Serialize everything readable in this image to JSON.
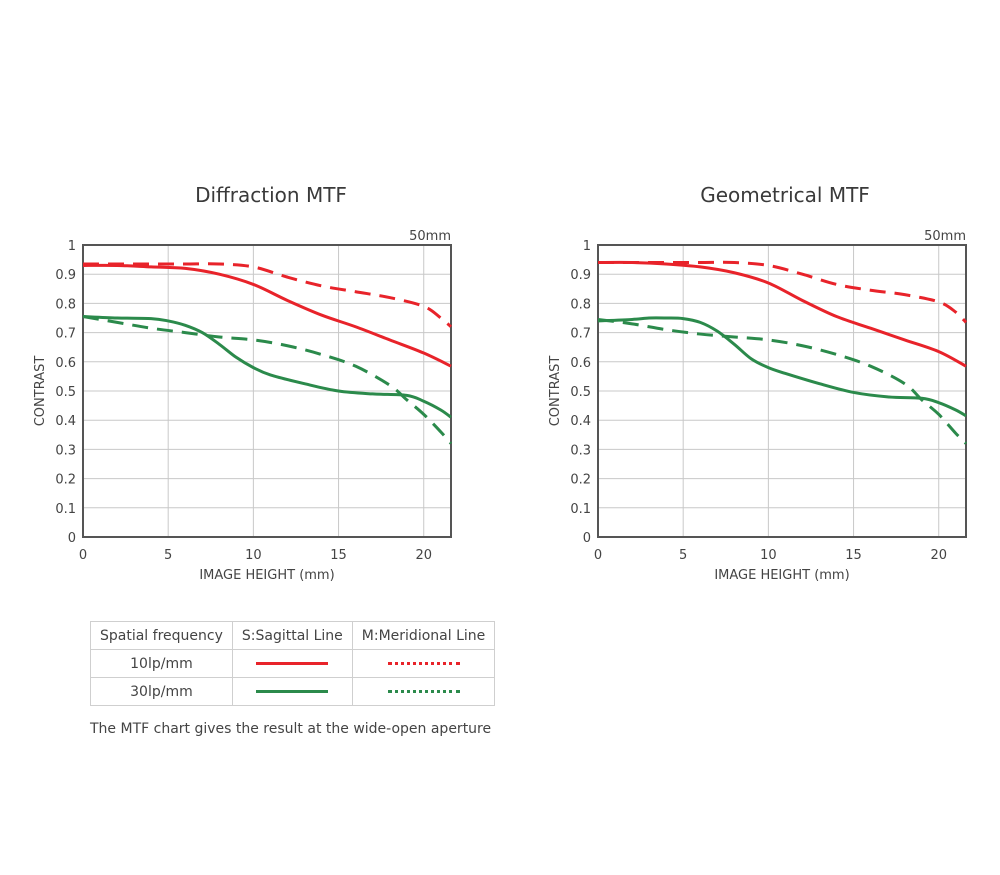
{
  "colors": {
    "red": "#e8232a",
    "green": "#2b8a4b",
    "grid": "#c8c8c8",
    "frame": "#555555"
  },
  "chart_data": [
    {
      "type": "line",
      "title": "Diffraction MTF",
      "corner_label": "50mm",
      "xlabel": "IMAGE HEIGHT (mm)",
      "ylabel": "CONTRAST",
      "xlim": [
        0,
        21.6
      ],
      "ylim": [
        0,
        1
      ],
      "xticks": [
        0,
        5,
        10,
        15,
        20
      ],
      "yticks": [
        0,
        0.1,
        0.2,
        0.3,
        0.4,
        0.5,
        0.6,
        0.7,
        0.8,
        0.9,
        1
      ],
      "xtick_labels": [
        "0",
        "5",
        "10",
        "15",
        "20"
      ],
      "ytick_labels": [
        "0",
        "0.1",
        "0.2",
        "0.3",
        "0.4",
        "0.5",
        "0.6",
        "0.7",
        "0.8",
        "0.9",
        "1"
      ],
      "grid": true,
      "series": [
        {
          "name": "10lp/mm S",
          "color": "#e8232a",
          "style": "solid",
          "x": [
            0,
            2,
            4,
            6,
            8,
            10,
            12,
            14,
            16,
            18,
            20,
            21.6
          ],
          "y": [
            0.93,
            0.93,
            0.925,
            0.92,
            0.9,
            0.865,
            0.81,
            0.76,
            0.72,
            0.675,
            0.63,
            0.585
          ]
        },
        {
          "name": "10lp/mm M",
          "color": "#e8232a",
          "style": "dashed",
          "x": [
            0,
            2,
            4,
            6,
            8,
            10,
            12,
            14,
            16,
            18,
            20,
            21,
            21.6
          ],
          "y": [
            0.935,
            0.935,
            0.935,
            0.935,
            0.935,
            0.925,
            0.89,
            0.86,
            0.84,
            0.82,
            0.79,
            0.75,
            0.72
          ]
        },
        {
          "name": "30lp/mm S",
          "color": "#2b8a4b",
          "style": "solid",
          "x": [
            0,
            2,
            4,
            5,
            6,
            7,
            8,
            9,
            10,
            11,
            13,
            15,
            17,
            19,
            20,
            21,
            21.6
          ],
          "y": [
            0.755,
            0.75,
            0.748,
            0.74,
            0.725,
            0.7,
            0.66,
            0.615,
            0.58,
            0.555,
            0.525,
            0.5,
            0.49,
            0.485,
            0.465,
            0.435,
            0.41
          ]
        },
        {
          "name": "30lp/mm M",
          "color": "#2b8a4b",
          "style": "dashed",
          "x": [
            0,
            2,
            4,
            6,
            8,
            10,
            12,
            14,
            16,
            18,
            19,
            20,
            21,
            21.6
          ],
          "y": [
            0.755,
            0.735,
            0.715,
            0.7,
            0.685,
            0.675,
            0.655,
            0.625,
            0.585,
            0.52,
            0.47,
            0.42,
            0.36,
            0.32
          ]
        }
      ]
    },
    {
      "type": "line",
      "title": "Geometrical MTF",
      "corner_label": "50mm",
      "xlabel": "IMAGE HEIGHT (mm)",
      "ylabel": "CONTRAST",
      "xlim": [
        0,
        21.6
      ],
      "ylim": [
        0,
        1
      ],
      "xticks": [
        0,
        5,
        10,
        15,
        20
      ],
      "yticks": [
        0,
        0.1,
        0.2,
        0.3,
        0.4,
        0.5,
        0.6,
        0.7,
        0.8,
        0.9,
        1
      ],
      "xtick_labels": [
        "0",
        "5",
        "10",
        "15",
        "20"
      ],
      "ytick_labels": [
        "0",
        "0.1",
        "0.2",
        "0.3",
        "0.4",
        "0.5",
        "0.6",
        "0.7",
        "0.8",
        "0.9",
        "1"
      ],
      "grid": true,
      "series": [
        {
          "name": "10lp/mm S",
          "color": "#e8232a",
          "style": "solid",
          "x": [
            0,
            2,
            4,
            6,
            8,
            10,
            12,
            14,
            16,
            18,
            20,
            21.6
          ],
          "y": [
            0.94,
            0.94,
            0.935,
            0.925,
            0.905,
            0.87,
            0.81,
            0.755,
            0.715,
            0.675,
            0.635,
            0.585
          ]
        },
        {
          "name": "10lp/mm M",
          "color": "#e8232a",
          "style": "dashed",
          "x": [
            0,
            2,
            4,
            6,
            8,
            10,
            12,
            14,
            16,
            18,
            20,
            21,
            21.6
          ],
          "y": [
            0.94,
            0.94,
            0.94,
            0.94,
            0.94,
            0.93,
            0.9,
            0.865,
            0.845,
            0.83,
            0.805,
            0.77,
            0.735
          ]
        },
        {
          "name": "30lp/mm S",
          "color": "#2b8a4b",
          "style": "solid",
          "x": [
            0,
            2,
            3,
            4,
            5,
            6,
            7,
            8,
            9,
            10,
            11,
            13,
            15,
            17,
            19,
            20,
            21,
            21.6
          ],
          "y": [
            0.74,
            0.745,
            0.75,
            0.75,
            0.748,
            0.735,
            0.705,
            0.66,
            0.61,
            0.58,
            0.56,
            0.525,
            0.495,
            0.48,
            0.475,
            0.46,
            0.435,
            0.415
          ]
        },
        {
          "name": "30lp/mm M",
          "color": "#2b8a4b",
          "style": "dashed",
          "x": [
            0,
            2,
            4,
            6,
            8,
            10,
            12,
            14,
            16,
            18,
            19,
            20,
            21,
            21.6
          ],
          "y": [
            0.745,
            0.73,
            0.71,
            0.695,
            0.685,
            0.675,
            0.655,
            0.625,
            0.585,
            0.525,
            0.47,
            0.42,
            0.355,
            0.32
          ]
        }
      ]
    }
  ],
  "legend_table": {
    "header": [
      "Spatial frequency",
      "S:Sagittal Line",
      "M:Meridional Line"
    ],
    "rows": [
      {
        "label": "10lp/mm",
        "color": "#e8232a"
      },
      {
        "label": "30lp/mm",
        "color": "#2b8a4b"
      }
    ]
  },
  "footnote": "The MTF chart gives the result at the wide-open aperture"
}
